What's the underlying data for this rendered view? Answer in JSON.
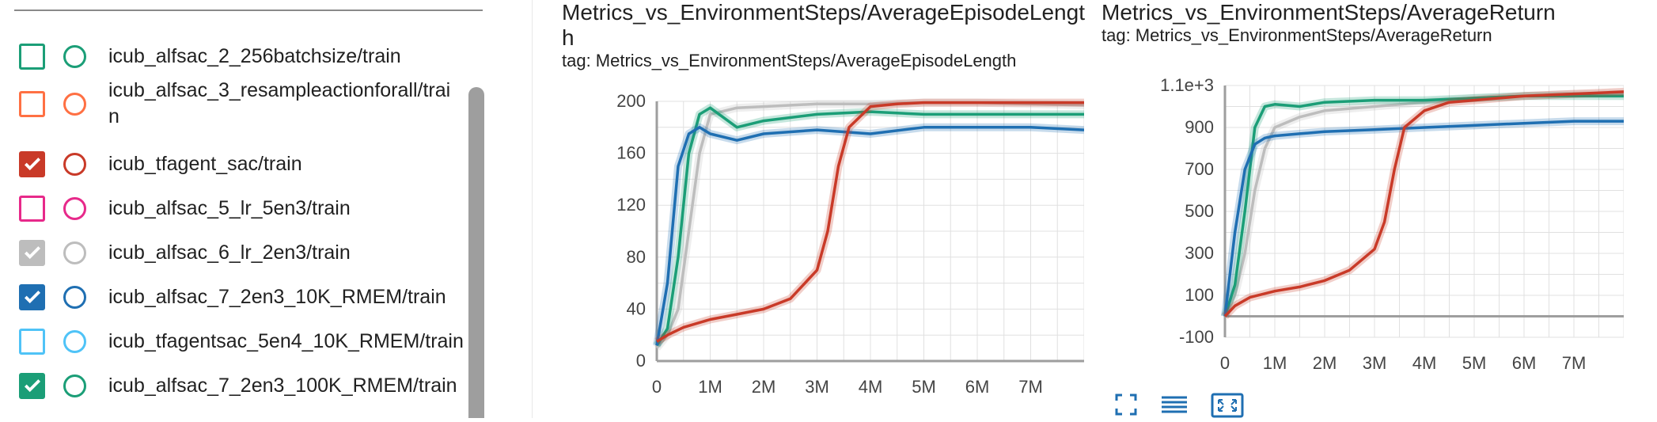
{
  "runs": [
    {
      "label": "icub_alfsac_2_256batchsize/train",
      "color": "#1b9e77",
      "checked": false
    },
    {
      "label": "icub_alfsac_3_resampleactionforall/trai\nn",
      "color": "#ff7043",
      "checked": false
    },
    {
      "label": "icub_tfagent_sac/train",
      "color": "#c93a28",
      "checked": true
    },
    {
      "label": "icub_alfsac_5_lr_5en3/train",
      "color": "#e7298a",
      "checked": false
    },
    {
      "label": "icub_alfsac_6_lr_2en3/train",
      "color": "#bdbdbd",
      "checked": true
    },
    {
      "label": "icub_alfsac_7_2en3_10K_RMEM/train",
      "color": "#1f6fb2",
      "checked": true
    },
    {
      "label": "icub_tfagentsac_5en4_10K_RMEM/train",
      "color": "#4fc3f7",
      "checked": false
    },
    {
      "label": "icub_alfsac_7_2en3_100K_RMEM/train",
      "color": "#1b9e77",
      "checked": true
    }
  ],
  "chart_data": [
    {
      "type": "line",
      "title": "Metrics_vs_EnvironmentSteps/AverageEpisodeLengt\nh",
      "subtitle": "tag: Metrics_vs_EnvironmentSteps/AverageEpisodeLength",
      "xlim": [
        0,
        8000000
      ],
      "ylim": [
        0,
        200
      ],
      "x_ticks": [
        0,
        1000000,
        2000000,
        3000000,
        4000000,
        5000000,
        6000000,
        7000000
      ],
      "x_tick_labels": [
        "0",
        "1M",
        "2M",
        "3M",
        "4M",
        "5M",
        "6M",
        "7M"
      ],
      "y_ticks": [
        0,
        40,
        80,
        120,
        160,
        200
      ],
      "y_tick_labels": [
        "0",
        "40",
        "80",
        "120",
        "160",
        "200"
      ],
      "grid": true,
      "series": [
        {
          "color": "#bdbdbd",
          "x": [
            0,
            200000,
            400000,
            600000,
            800000,
            1000000,
            1500000,
            2000000,
            3000000,
            4000000,
            5000000,
            6000000,
            7000000,
            8000000
          ],
          "values": [
            10,
            20,
            40,
            100,
            160,
            190,
            195,
            196,
            198,
            198,
            199,
            199,
            198,
            197
          ]
        },
        {
          "color": "#1b9e77",
          "x": [
            0,
            200000,
            400000,
            600000,
            800000,
            1000000,
            1500000,
            2000000,
            3000000,
            4000000,
            5000000,
            6000000,
            7000000,
            8000000
          ],
          "values": [
            12,
            25,
            80,
            160,
            190,
            195,
            180,
            185,
            190,
            192,
            190,
            190,
            190,
            190
          ]
        },
        {
          "color": "#1f6fb2",
          "x": [
            0,
            200000,
            400000,
            600000,
            800000,
            1000000,
            1500000,
            2000000,
            3000000,
            4000000,
            5000000,
            6000000,
            7000000,
            8000000
          ],
          "values": [
            12,
            60,
            150,
            175,
            180,
            175,
            170,
            175,
            178,
            175,
            180,
            180,
            180,
            178
          ]
        },
        {
          "color": "#c93a28",
          "x": [
            0,
            200000,
            500000,
            1000000,
            1500000,
            2000000,
            2500000,
            3000000,
            3200000,
            3400000,
            3600000,
            4000000,
            4500000,
            5000000,
            6000000,
            7000000,
            8000000
          ],
          "values": [
            15,
            20,
            26,
            32,
            36,
            40,
            48,
            70,
            100,
            150,
            180,
            196,
            198,
            199,
            199,
            199,
            199
          ]
        }
      ]
    },
    {
      "type": "line",
      "title": "Metrics_vs_EnvironmentSteps/AverageReturn",
      "subtitle": "tag: Metrics_vs_EnvironmentSteps/AverageReturn",
      "xlim": [
        0,
        8000000
      ],
      "ylim": [
        -100,
        1100
      ],
      "x_ticks": [
        0,
        1000000,
        2000000,
        3000000,
        4000000,
        5000000,
        6000000,
        7000000
      ],
      "x_tick_labels": [
        "0",
        "1M",
        "2M",
        "3M",
        "4M",
        "5M",
        "6M",
        "7M"
      ],
      "y_ticks": [
        -100,
        100,
        300,
        500,
        700,
        900,
        1100
      ],
      "y_tick_labels": [
        "-100",
        "100",
        "300",
        "500",
        "700",
        "900",
        "1.1e+3"
      ],
      "grid": true,
      "series": [
        {
          "color": "#bdbdbd",
          "x": [
            0,
            200000,
            400000,
            600000,
            800000,
            1000000,
            1500000,
            2000000,
            3000000,
            4000000,
            5000000,
            6000000,
            7000000,
            8000000
          ],
          "values": [
            0,
            100,
            300,
            600,
            800,
            900,
            950,
            980,
            1000,
            1020,
            1040,
            1050,
            1060,
            1060
          ]
        },
        {
          "color": "#1b9e77",
          "x": [
            0,
            200000,
            400000,
            600000,
            800000,
            1000000,
            1500000,
            2000000,
            3000000,
            4000000,
            5000000,
            6000000,
            7000000,
            8000000
          ],
          "values": [
            0,
            150,
            500,
            900,
            1000,
            1010,
            1000,
            1020,
            1030,
            1030,
            1040,
            1050,
            1050,
            1050
          ]
        },
        {
          "color": "#1f6fb2",
          "x": [
            0,
            200000,
            400000,
            600000,
            800000,
            1000000,
            1500000,
            2000000,
            3000000,
            4000000,
            5000000,
            6000000,
            7000000,
            8000000
          ],
          "values": [
            0,
            400,
            700,
            820,
            850,
            860,
            870,
            880,
            890,
            900,
            910,
            920,
            930,
            930
          ]
        },
        {
          "color": "#c93a28",
          "x": [
            0,
            200000,
            500000,
            1000000,
            1500000,
            2000000,
            2500000,
            3000000,
            3200000,
            3400000,
            3600000,
            4000000,
            4500000,
            5000000,
            6000000,
            7000000,
            8000000
          ],
          "values": [
            0,
            50,
            90,
            120,
            140,
            170,
            220,
            320,
            450,
            700,
            900,
            980,
            1020,
            1030,
            1050,
            1060,
            1070
          ]
        }
      ]
    }
  ],
  "toolbar": {
    "icons": [
      "fullscreen-icon",
      "list-icon",
      "fit-domain-icon"
    ]
  }
}
